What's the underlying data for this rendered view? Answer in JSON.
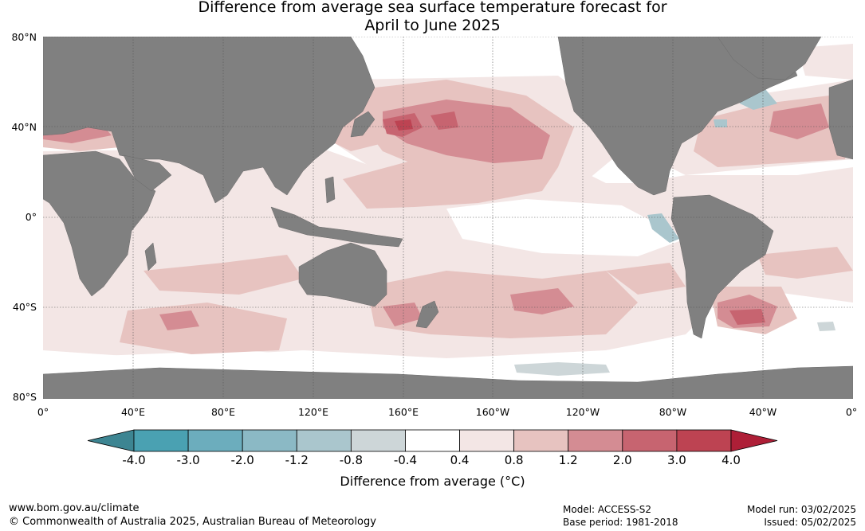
{
  "title_line1": "Difference from average sea surface temperature forecast for",
  "title_line2": "April to June 2025",
  "map": {
    "lat_labels": [
      "80°N",
      "40°N",
      "0°",
      "40°S",
      "80°S"
    ],
    "lon_labels": [
      "0°",
      "40°E",
      "80°E",
      "120°E",
      "160°E",
      "160°W",
      "120°W",
      "80°W",
      "40°W",
      "0°"
    ],
    "land_color": "#808080",
    "grid": true
  },
  "legend": {
    "ticks": [
      "-4.0",
      "-3.0",
      "-2.0",
      "-1.2",
      "-0.8",
      "-0.4",
      "0.4",
      "0.8",
      "1.2",
      "2.0",
      "3.0",
      "4.0"
    ],
    "colors": [
      "#3d8592",
      "#4aa1b2",
      "#6cadbd",
      "#8bb9c5",
      "#aac6cd",
      "#cdd6d8",
      "#ffffff",
      "#f3e6e5",
      "#e7c3c0",
      "#d48c93",
      "#c76470",
      "#bd4352",
      "#ae1f37"
    ],
    "label": "Difference from average (",
    "label_unit": "°C",
    "label_close": ")"
  },
  "footer": {
    "url": "www.bom.gov.au/climate",
    "copyright": "© Commonwealth of Australia 2025, Australian Bureau of Meteorology",
    "model": "Model: ACCESS-S2",
    "base_period": "Base period: 1981-2018",
    "model_run": "Model run: 03/02/2025",
    "issued": "Issued: 05/02/2025"
  }
}
